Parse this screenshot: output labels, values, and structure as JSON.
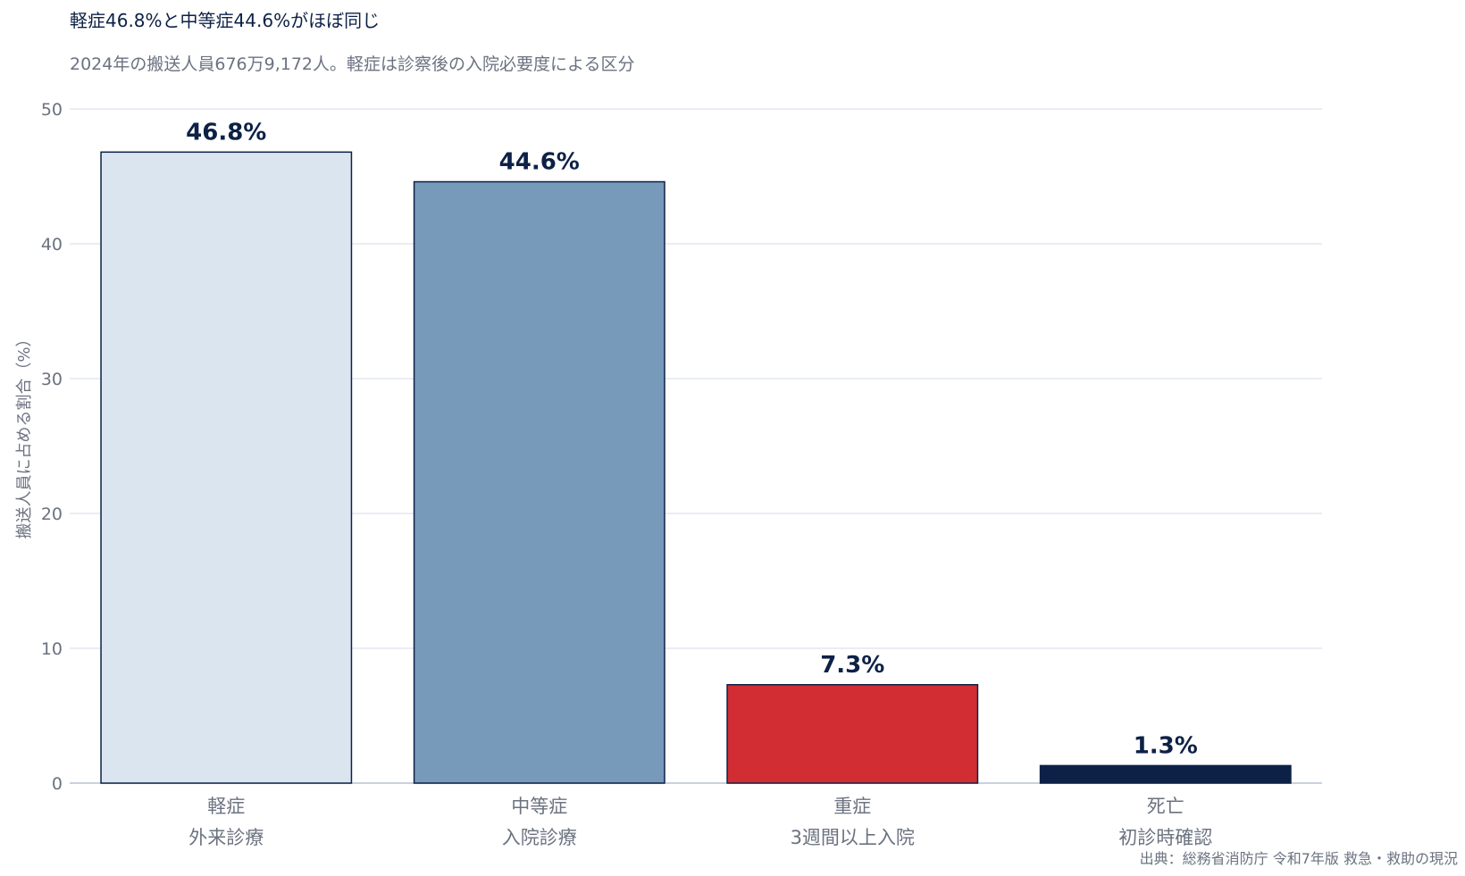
{
  "chart_data": {
    "type": "bar",
    "title": "軽症46.8%と中等症44.6%がほぼ同じ",
    "subtitle": "2024年の搬送人員676万9,172人。軽症は診察後の入院必要度による区分",
    "ylabel": "搬送人員に占める割合（%）",
    "xlabel": "",
    "ylim": [
      0,
      50
    ],
    "yticks": [
      0,
      10,
      20,
      30,
      40,
      50
    ],
    "grid": true,
    "categories": [
      [
        "軽症",
        "外来診療"
      ],
      [
        "中等症",
        "入院診療"
      ],
      [
        "重症",
        "3週間以上入院"
      ],
      [
        "死亡",
        "初診時確認"
      ]
    ],
    "values": [
      46.8,
      44.6,
      7.3,
      1.3
    ],
    "data_labels": [
      "46.8%",
      "44.6%",
      "7.3%",
      "1.3%"
    ],
    "colors": [
      "#dbe5f0",
      "#7799ba",
      "#d12d33",
      "#0d2146"
    ],
    "bar_edge_color": "#0d2146",
    "source": "出典：総務省消防庁 令和7年版 救急・救助の現況"
  }
}
